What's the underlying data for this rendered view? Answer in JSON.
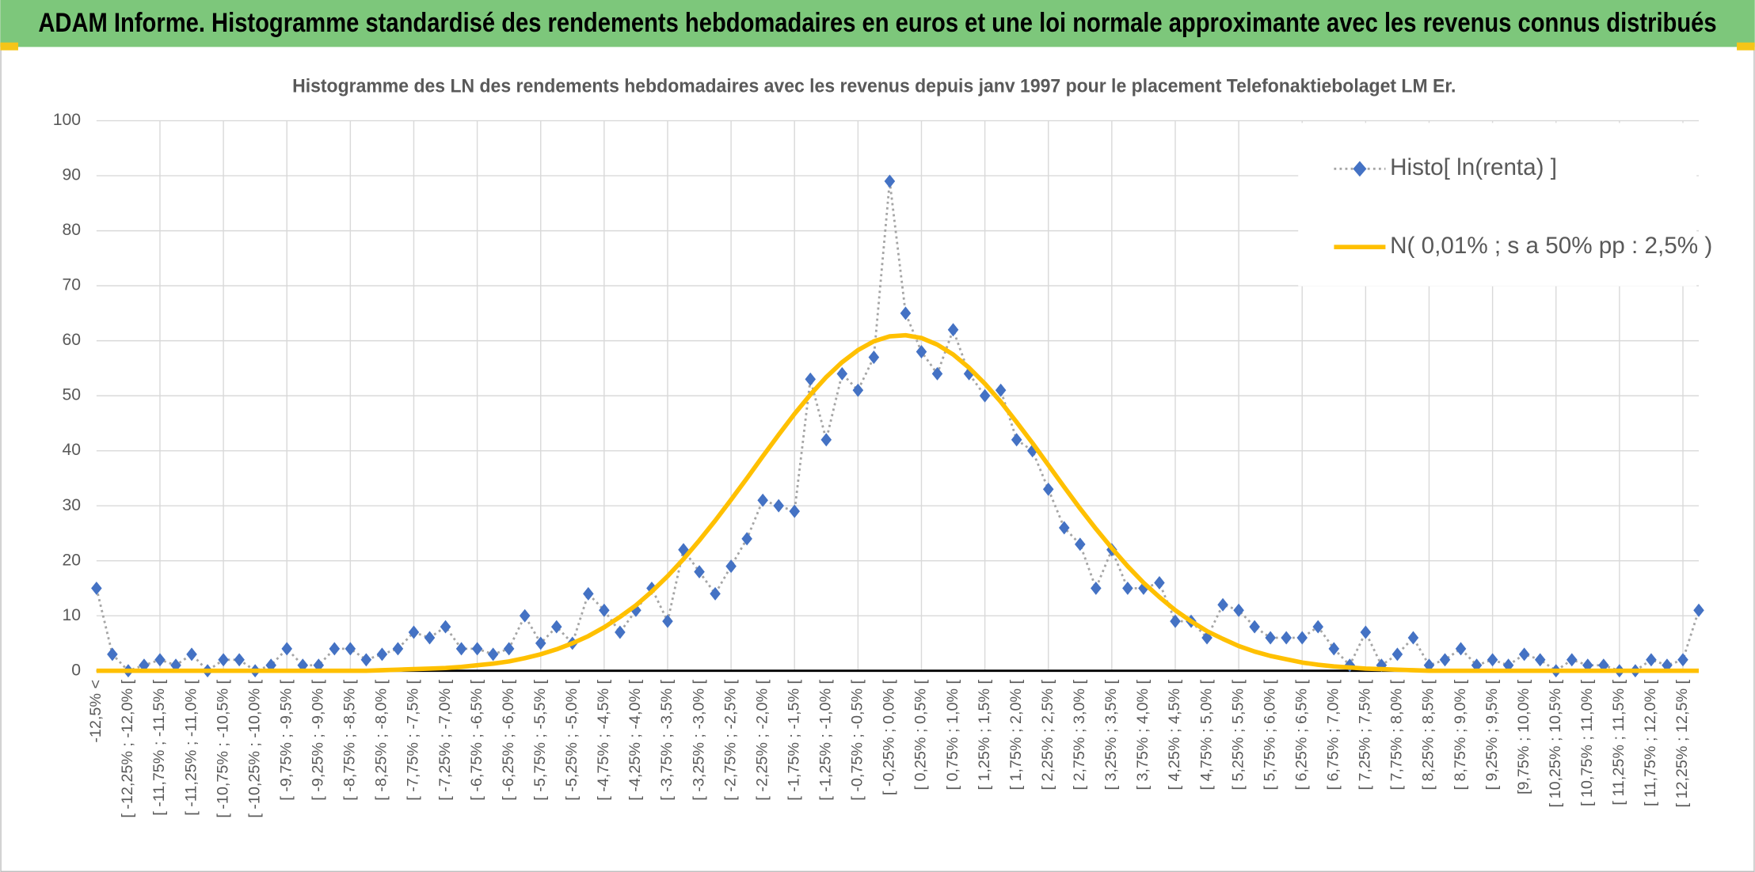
{
  "chart_data": {
    "type": "line",
    "header": "ADAM Informe. Histogramme standardisé des rendements hebdomadaires en euros et une loi normale approximante avec les revenus connus distribués",
    "title": "Histogramme des LN des rendements hebdomadaires avec les revenus depuis janv 1997 pour le placement Telefonaktiebolaget LM Er.",
    "categories": [
      "-12,5% <",
      null,
      "[ -12,25% ; -12,0% [",
      null,
      "[ -11,75% ; -11,5% [",
      null,
      "[ -11,25% ; -11,0% [",
      null,
      "[ -10,75% ; -10,5% [",
      null,
      "[ -10,25% ; -10,0% [",
      null,
      "[ -9,75% ; -9,5% [",
      null,
      "[ -9,25% ; -9,0% [",
      null,
      "[ -8,75% ; -8,5% [",
      null,
      "[ -8,25% ; -8,0% [",
      null,
      "[ -7,75% ; -7,5% [",
      null,
      "[ -7,25% ; -7,0% [",
      null,
      "[ -6,75% ; -6,5% [",
      null,
      "[ -6,25% ; -6,0% [",
      null,
      "[ -5,75% ; -5,5% [",
      null,
      "[ -5,25% ; -5,0% [",
      null,
      "[ -4,75% ; -4,5% [",
      null,
      "[ -4,25% ; -4,0% [",
      null,
      "[ -3,75% ; -3,5% [",
      null,
      "[ -3,25% ; -3,0% [",
      null,
      "[ -2,75% ; -2,5% [",
      null,
      "[ -2,25% ; -2,0% [",
      null,
      "[ -1,75% ; -1,5% [",
      null,
      "[ -1,25% ; -1,0% [",
      null,
      "[ -0,75% ; -0,5% [",
      null,
      "[ -0,25% ; 0,0% [",
      null,
      "[ 0,25% ; 0,5% [",
      null,
      "[ 0,75% ; 1,0% [",
      null,
      "[ 1,25% ; 1,5% [",
      null,
      "[ 1,75% ; 2,0% [",
      null,
      "[ 2,25% ; 2,5% [",
      null,
      "[ 2,75% ; 3,0% [",
      null,
      "[ 3,25% ; 3,5% [",
      null,
      "[ 3,75% ; 4,0% [",
      null,
      "[ 4,25% ; 4,5% [",
      null,
      "[ 4,75% ; 5,0% [",
      null,
      "[ 5,25% ; 5,5% [",
      null,
      "[ 5,75% ; 6,0% [",
      null,
      "[ 6,25% ; 6,5% [",
      null,
      "[ 6,75% ; 7,0% [",
      null,
      "[ 7,25% ; 7,5% [",
      null,
      "[ 7,75% ; 8,0% [",
      null,
      "[ 8,25% ; 8,5% [",
      null,
      "[ 8,75% ; 9,0% [",
      null,
      "[ 9,25% ; 9,5% [",
      null,
      "[9,75% ; 10,0% [",
      null,
      "[ 10,25% ; 10,5% [",
      null,
      "[ 10,75% ; 11,0% [",
      null,
      "[ 11,25% ; 11,5% [",
      null,
      "[ 11,75% ; 12,0% [",
      null,
      "[ 12,25% ; 12,5% [",
      null
    ],
    "series": [
      {
        "name": "Histo[ ln(renta) ]",
        "color": "#4472c4",
        "line_color": "#a5a5a5",
        "values": [
          15,
          3,
          0,
          1,
          2,
          1,
          3,
          0,
          2,
          2,
          0,
          1,
          4,
          1,
          1,
          4,
          4,
          2,
          3,
          4,
          7,
          6,
          8,
          4,
          4,
          3,
          4,
          10,
          5,
          8,
          5,
          14,
          11,
          7,
          11,
          15,
          9,
          22,
          18,
          14,
          19,
          24,
          31,
          30,
          29,
          53,
          42,
          54,
          51,
          57,
          89,
          65,
          58,
          54,
          62,
          54,
          50,
          51,
          42,
          40,
          33,
          26,
          23,
          15,
          22,
          15,
          15,
          16,
          9,
          9,
          6,
          12,
          11,
          8,
          6,
          6,
          6,
          8,
          4,
          1,
          7,
          1,
          3,
          6,
          1,
          2,
          4,
          1,
          2,
          1,
          3,
          2,
          0,
          2,
          1,
          1,
          0,
          0,
          2,
          1,
          2,
          11
        ]
      },
      {
        "name": "N( 0,01% ; s a 50% pp : 2,5% )",
        "color": "#ffc000",
        "values": [
          0,
          0,
          0,
          0,
          0,
          0,
          0,
          0,
          0,
          0,
          0,
          0,
          0,
          0,
          0,
          0,
          0,
          0,
          0.1,
          0.2,
          0.3,
          0.4,
          0.5,
          0.7,
          1.0,
          1.3,
          1.7,
          2.3,
          3.0,
          3.9,
          5.0,
          6.3,
          7.9,
          9.8,
          11.9,
          14.4,
          17.2,
          20.3,
          23.7,
          27.3,
          31.1,
          35.0,
          39.0,
          42.9,
          46.7,
          50.2,
          53.4,
          56.1,
          58.3,
          59.9,
          60.8,
          61.0,
          60.5,
          59.3,
          57.5,
          55.1,
          52.2,
          48.9,
          45.2,
          41.4,
          37.4,
          33.4,
          29.5,
          25.8,
          22.3,
          19.0,
          16.0,
          13.4,
          11.0,
          9.0,
          7.2,
          5.8,
          4.5,
          3.5,
          2.7,
          2.1,
          1.5,
          1.1,
          0.8,
          0.6,
          0.4,
          0.3,
          0.2,
          0.1,
          0,
          0,
          0,
          0,
          0,
          0,
          0,
          0,
          0,
          0,
          0,
          0,
          0,
          0,
          0,
          0,
          0,
          0
        ]
      }
    ],
    "ylim": [
      0,
      100
    ],
    "yticks": [
      0,
      10,
      20,
      30,
      40,
      50,
      60,
      70,
      80,
      90,
      100
    ],
    "grid": true,
    "legend": "upper right"
  }
}
